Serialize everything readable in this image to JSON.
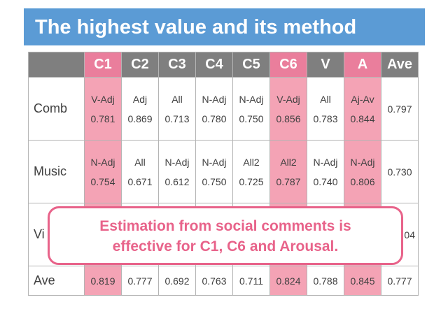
{
  "title": "The highest value and its method",
  "table": {
    "columns": [
      {
        "label": "C1",
        "highlight": true
      },
      {
        "label": "C2",
        "highlight": false
      },
      {
        "label": "C3",
        "highlight": false
      },
      {
        "label": "C4",
        "highlight": false
      },
      {
        "label": "C5",
        "highlight": false
      },
      {
        "label": "C6",
        "highlight": true
      },
      {
        "label": "V",
        "highlight": false
      },
      {
        "label": "A",
        "highlight": true
      },
      {
        "label": "Ave",
        "highlight": false
      }
    ],
    "rows": [
      {
        "label": "Comb",
        "methods": [
          "V-Adj",
          "Adj",
          "All",
          "N-Adj",
          "N-Adj",
          "V-Adj",
          "All",
          "Aj-Av"
        ],
        "values": [
          "0.781",
          "0.869",
          "0.713",
          "0.780",
          "0.750",
          "0.856",
          "0.783",
          "0.844"
        ],
        "ave": "0.797"
      },
      {
        "label": "Music",
        "methods": [
          "N-Adj",
          "All",
          "N-Adj",
          "N-Adj",
          "All2",
          "All2",
          "N-Adj",
          "N-Adj"
        ],
        "values": [
          "0.754",
          "0.671",
          "0.612",
          "0.750",
          "0.725",
          "0.787",
          "0.740",
          "0.806"
        ],
        "ave": "0.730"
      },
      {
        "label": "Vi",
        "ave": "04"
      },
      {
        "label": "Ave",
        "values": [
          "0.819",
          "0.777",
          "0.692",
          "0.763",
          "0.711",
          "0.824",
          "0.788",
          "0.845"
        ],
        "ave": "0.777"
      }
    ]
  },
  "callout": {
    "line1": "Estimation from social comments is",
    "line2": "effective for C1, C6 and  Arousal."
  },
  "colors": {
    "title_bg": "#5b9bd5",
    "header_bg": "#7f7f7f",
    "header_highlight": "#ea7e9c",
    "cell_highlight": "#f4a3b5",
    "callout_accent": "#e8638a"
  }
}
